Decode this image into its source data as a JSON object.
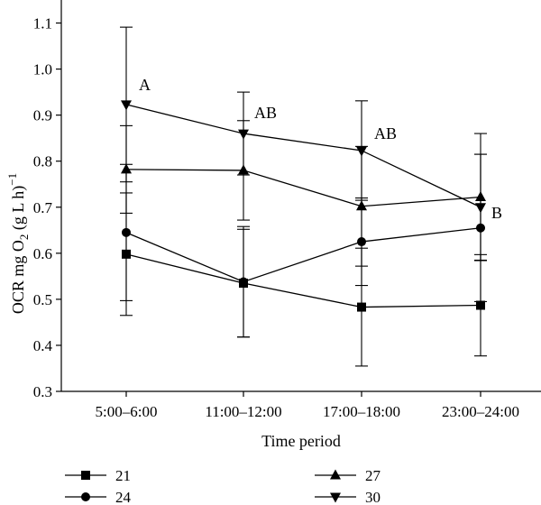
{
  "chart_data": {
    "type": "line",
    "title": "",
    "xlabel": "Time period",
    "ylabel_parts": {
      "a": "OCR mg O",
      "sub": "2",
      "b": " (g L h)",
      "sup": "−1"
    },
    "categories": [
      "5:00–6:00",
      "11:00–12:00",
      "17:00–18:00",
      "23:00–24:00"
    ],
    "ylim": [
      0.3,
      1.15
    ],
    "yticks": [
      "0.3",
      "0.4",
      "0.5",
      "0.6",
      "0.7",
      "0.8",
      "0.9",
      "1.0",
      "1.1"
    ],
    "grid": false,
    "legend_position": "bottom",
    "series": [
      {
        "name": "21",
        "marker": "square",
        "values": [
          0.598,
          0.535,
          0.483,
          0.487
        ],
        "errors": [
          0.133,
          0.117,
          0.128,
          0.11
        ]
      },
      {
        "name": "24",
        "marker": "circle",
        "values": [
          0.645,
          0.538,
          0.625,
          0.655
        ],
        "errors": [
          0.148,
          0.12,
          0.095,
          0.16
        ]
      },
      {
        "name": "27",
        "marker": "triangle-up",
        "values": [
          0.782,
          0.78,
          0.702,
          0.722
        ],
        "errors": [
          0.095,
          0.108,
          0.13,
          0.138
        ]
      },
      {
        "name": "30",
        "marker": "triangle-down",
        "values": [
          0.923,
          0.86,
          0.823,
          0.7
        ],
        "errors": [
          0.168,
          0.09,
          0.108,
          0.115
        ]
      }
    ],
    "annotations": [
      {
        "text": "A",
        "category_index": 0,
        "series": "30"
      },
      {
        "text": "AB",
        "category_index": 1,
        "series": "30"
      },
      {
        "text": "AB",
        "category_index": 2,
        "series": "30"
      },
      {
        "text": "B",
        "category_index": 3,
        "series": "30"
      }
    ]
  }
}
